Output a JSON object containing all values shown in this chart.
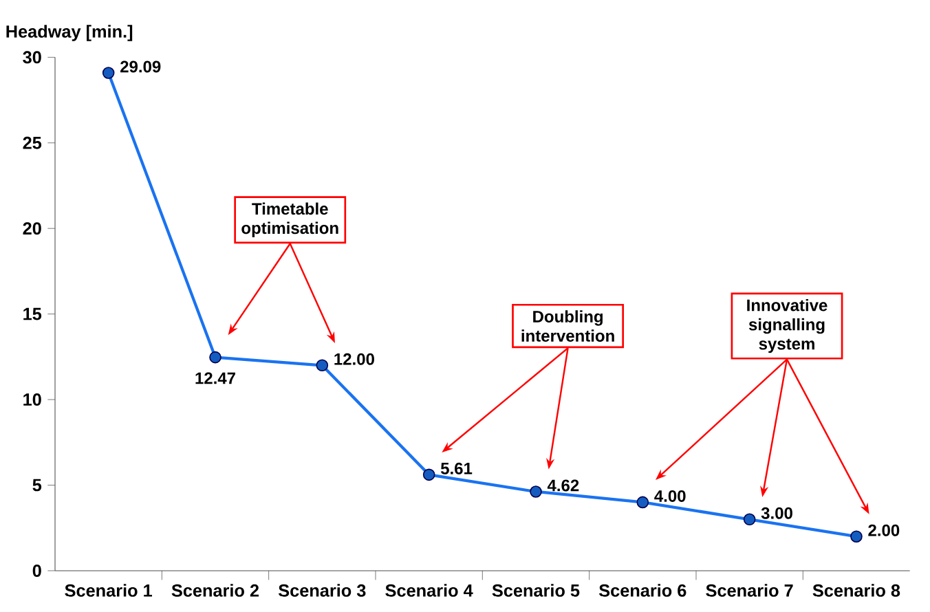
{
  "chart_data": {
    "type": "line",
    "ylabel": "Headway [min.]",
    "categories": [
      "Scenario 1",
      "Scenario 2",
      "Scenario 3",
      "Scenario 4",
      "Scenario 5",
      "Scenario 6",
      "Scenario 7",
      "Scenario 8"
    ],
    "values": [
      29.09,
      12.47,
      12.0,
      5.61,
      4.62,
      4.0,
      3.0,
      2.0
    ],
    "color": "#1a73f0",
    "marker": "circle",
    "data_labels": true,
    "value_labels": [
      "29.09",
      "12.47",
      "12.00",
      "5.61",
      "4.62",
      "4.00",
      "3.00",
      "2.00"
    ],
    "ylim": [
      0,
      30
    ],
    "yticks": [
      0,
      5,
      10,
      15,
      20,
      25,
      30
    ],
    "grid": false,
    "annotations": [
      "Timetable optimisation",
      "Doubling intervention",
      "Innovative signalling system"
    ]
  }
}
